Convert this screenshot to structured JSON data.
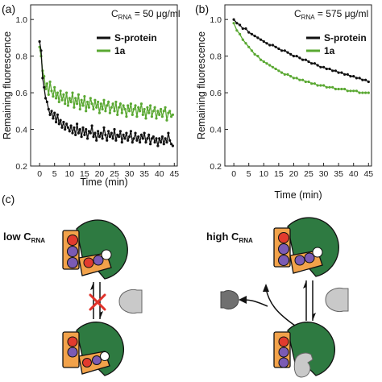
{
  "panels": {
    "a": {
      "letter": "(a)",
      "concentration": {
        "prefix": "C",
        "sub": "RNA",
        "suffix": " = 50 μg/ml"
      }
    },
    "b": {
      "letter": "(b)",
      "concentration": {
        "prefix": "C",
        "sub": "RNA",
        "suffix": " = 575 μg/ml"
      }
    },
    "c": {
      "letter": "(c)",
      "low_label": {
        "prefix": "low C",
        "sub": "RNA"
      },
      "high_label": {
        "prefix": "high C",
        "sub": "RNA"
      }
    }
  },
  "colors": {
    "s_protein": "#111111",
    "oneA": "#5aa832",
    "green_domain": "#2e7a41",
    "orange": "#f2a24a",
    "red": "#e23b2e",
    "purple": "#7b5bb4",
    "ligand_light": "#c9c9c9",
    "ligand_dark": "#707070",
    "cross": "#e0322a"
  },
  "chart_data": [
    {
      "type": "line",
      "panel": "a",
      "xlabel": "Time (min)",
      "ylabel": "Remaining fluorescence",
      "xlim": [
        -3,
        46
      ],
      "ylim": [
        0.2,
        1.08
      ],
      "xticks": [
        0,
        5,
        10,
        15,
        20,
        25,
        30,
        35,
        40,
        45
      ],
      "yticks": [
        0.2,
        0.4,
        0.6,
        0.8,
        1.0
      ],
      "legend_position": "top-right",
      "series": [
        {
          "name": "S-protein",
          "color": "#111111",
          "x": [
            0,
            0.5,
            1,
            1.5,
            2,
            2.5,
            3,
            3.5,
            4,
            4.5,
            5,
            5.5,
            6,
            6.5,
            7,
            7.5,
            8,
            8.5,
            9,
            9.5,
            10,
            10.5,
            11,
            11.5,
            12,
            12.5,
            13,
            13.5,
            14,
            14.5,
            15,
            15.5,
            16,
            16.5,
            17,
            17.5,
            18,
            18.5,
            19,
            19.5,
            20,
            20.5,
            21,
            21.5,
            22,
            22.5,
            23,
            23.5,
            24,
            24.5,
            25,
            25.5,
            26,
            26.5,
            27,
            27.5,
            28,
            28.5,
            29,
            29.5,
            30,
            30.5,
            31,
            31.5,
            32,
            32.5,
            33,
            33.5,
            34,
            34.5,
            35,
            35.5,
            36,
            36.5,
            37,
            37.5,
            38,
            38.5,
            39,
            39.5,
            40,
            40.5,
            41,
            41.5,
            42,
            42.5,
            43,
            43.5,
            44,
            44.5
          ],
          "y": [
            0.88,
            0.83,
            0.68,
            0.63,
            0.57,
            0.55,
            0.51,
            0.48,
            0.5,
            0.46,
            0.49,
            0.44,
            0.48,
            0.43,
            0.45,
            0.41,
            0.44,
            0.4,
            0.43,
            0.41,
            0.39,
            0.42,
            0.38,
            0.41,
            0.37,
            0.43,
            0.38,
            0.4,
            0.36,
            0.41,
            0.37,
            0.4,
            0.35,
            0.39,
            0.38,
            0.42,
            0.36,
            0.38,
            0.34,
            0.39,
            0.36,
            0.38,
            0.35,
            0.41,
            0.37,
            0.34,
            0.39,
            0.36,
            0.38,
            0.35,
            0.4,
            0.34,
            0.37,
            0.36,
            0.39,
            0.33,
            0.37,
            0.35,
            0.38,
            0.34,
            0.36,
            0.39,
            0.33,
            0.35,
            0.38,
            0.34,
            0.36,
            0.33,
            0.37,
            0.35,
            0.38,
            0.33,
            0.35,
            0.37,
            0.32,
            0.35,
            0.36,
            0.33,
            0.35,
            0.31,
            0.35,
            0.33,
            0.36,
            0.32,
            0.35,
            0.33,
            0.38,
            0.34,
            0.32,
            0.31
          ]
        },
        {
          "name": "1a",
          "color": "#5aa832",
          "x": [
            0,
            0.5,
            1,
            1.5,
            2,
            2.5,
            3,
            3.5,
            4,
            4.5,
            5,
            5.5,
            6,
            6.5,
            7,
            7.5,
            8,
            8.5,
            9,
            9.5,
            10,
            10.5,
            11,
            11.5,
            12,
            12.5,
            13,
            13.5,
            14,
            14.5,
            15,
            15.5,
            16,
            16.5,
            17,
            17.5,
            18,
            18.5,
            19,
            19.5,
            20,
            20.5,
            21,
            21.5,
            22,
            22.5,
            23,
            23.5,
            24,
            24.5,
            25,
            25.5,
            26,
            26.5,
            27,
            27.5,
            28,
            28.5,
            29,
            29.5,
            30,
            30.5,
            31,
            31.5,
            32,
            32.5,
            33,
            33.5,
            34,
            34.5,
            35,
            35.5,
            36,
            36.5,
            37,
            37.5,
            38,
            38.5,
            39,
            39.5,
            40,
            40.5,
            41,
            41.5,
            42,
            42.5,
            43,
            43.5,
            44,
            44.5
          ],
          "y": [
            0.85,
            0.8,
            0.72,
            0.69,
            0.62,
            0.65,
            0.59,
            0.66,
            0.61,
            0.58,
            0.63,
            0.57,
            0.6,
            0.55,
            0.61,
            0.56,
            0.59,
            0.54,
            0.6,
            0.53,
            0.57,
            0.55,
            0.6,
            0.52,
            0.57,
            0.54,
            0.59,
            0.51,
            0.56,
            0.53,
            0.58,
            0.5,
            0.55,
            0.52,
            0.57,
            0.54,
            0.51,
            0.56,
            0.52,
            0.55,
            0.49,
            0.54,
            0.51,
            0.56,
            0.5,
            0.53,
            0.55,
            0.49,
            0.52,
            0.54,
            0.5,
            0.55,
            0.48,
            0.52,
            0.54,
            0.49,
            0.53,
            0.51,
            0.47,
            0.53,
            0.5,
            0.54,
            0.48,
            0.51,
            0.53,
            0.47,
            0.52,
            0.5,
            0.54,
            0.48,
            0.51,
            0.46,
            0.52,
            0.49,
            0.53,
            0.47,
            0.5,
            0.52,
            0.46,
            0.5,
            0.48,
            0.51,
            0.47,
            0.5,
            0.52,
            0.45,
            0.49,
            0.5,
            0.47,
            0.48
          ]
        }
      ]
    },
    {
      "type": "line",
      "panel": "b",
      "xlabel": "Time (min)",
      "ylabel": "Remaining fluorescence",
      "xlim": [
        -3,
        46
      ],
      "ylim": [
        0.2,
        1.08
      ],
      "xticks": [
        0,
        5,
        10,
        15,
        20,
        25,
        30,
        35,
        40,
        45
      ],
      "yticks": [
        0.2,
        0.4,
        0.6,
        0.8,
        1.0
      ],
      "legend_position": "top-right",
      "series": [
        {
          "name": "S-protein",
          "color": "#111111",
          "x": [
            0,
            1,
            2,
            3,
            4,
            5,
            6,
            7,
            8,
            9,
            10,
            11,
            12,
            13,
            14,
            15,
            16,
            17,
            18,
            19,
            20,
            21,
            22,
            23,
            24,
            25,
            26,
            27,
            28,
            29,
            30,
            31,
            32,
            33,
            34,
            35,
            36,
            37,
            38,
            39,
            40,
            41,
            42,
            43,
            44,
            45
          ],
          "y": [
            1.0,
            0.98,
            0.97,
            0.95,
            0.95,
            0.93,
            0.92,
            0.91,
            0.9,
            0.89,
            0.88,
            0.87,
            0.86,
            0.86,
            0.85,
            0.84,
            0.83,
            0.83,
            0.82,
            0.81,
            0.8,
            0.8,
            0.79,
            0.78,
            0.78,
            0.77,
            0.76,
            0.76,
            0.75,
            0.74,
            0.74,
            0.73,
            0.73,
            0.72,
            0.72,
            0.71,
            0.71,
            0.7,
            0.7,
            0.69,
            0.69,
            0.68,
            0.68,
            0.67,
            0.67,
            0.66
          ]
        },
        {
          "name": "1a",
          "color": "#5aa832",
          "x": [
            0,
            1,
            2,
            3,
            4,
            5,
            6,
            7,
            8,
            9,
            10,
            11,
            12,
            13,
            14,
            15,
            16,
            17,
            18,
            19,
            20,
            21,
            22,
            23,
            24,
            25,
            26,
            27,
            28,
            29,
            30,
            31,
            32,
            33,
            34,
            35,
            36,
            37,
            38,
            39,
            40,
            41,
            42,
            43,
            44,
            45
          ],
          "y": [
            0.98,
            0.94,
            0.92,
            0.89,
            0.87,
            0.85,
            0.83,
            0.81,
            0.8,
            0.78,
            0.77,
            0.76,
            0.75,
            0.74,
            0.73,
            0.72,
            0.71,
            0.7,
            0.7,
            0.69,
            0.68,
            0.68,
            0.67,
            0.67,
            0.66,
            0.66,
            0.65,
            0.65,
            0.64,
            0.64,
            0.64,
            0.63,
            0.63,
            0.63,
            0.62,
            0.62,
            0.62,
            0.62,
            0.61,
            0.61,
            0.61,
            0.61,
            0.6,
            0.6,
            0.6,
            0.6
          ]
        }
      ]
    }
  ]
}
